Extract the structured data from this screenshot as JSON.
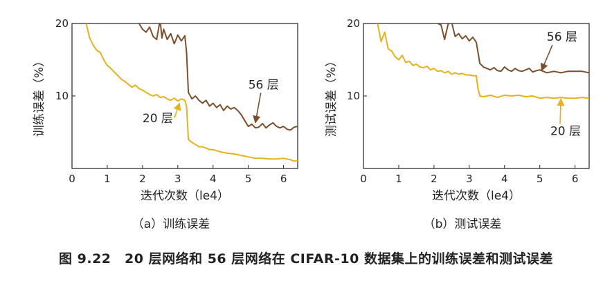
{
  "figure_caption": "图 9.22　20 层网络和 56 层网络在 CIFAR-10 数据集上的训练误差和测试误差",
  "chart_data": [
    {
      "type": "line",
      "subtitle": "（a）训练误差",
      "xlabel": "迭代次数（le4）",
      "ylabel": "训练误差（%）",
      "xlim": [
        0,
        6.4
      ],
      "ylim": [
        0,
        20
      ],
      "xticks": [
        "0",
        "1",
        "2",
        "3",
        "4",
        "5",
        "6"
      ],
      "yticks": [
        "10",
        "20"
      ],
      "series": [
        {
          "name": "56 层",
          "color": "#7a4f2e",
          "x": [
            1.9,
            2.0,
            2.1,
            2.2,
            2.3,
            2.4,
            2.5,
            2.55,
            2.6,
            2.7,
            2.8,
            2.9,
            3.0,
            3.1,
            3.2,
            3.25,
            3.3,
            3.4,
            3.5,
            3.6,
            3.7,
            3.8,
            3.9,
            4.0,
            4.1,
            4.2,
            4.3,
            4.4,
            4.5,
            4.6,
            4.7,
            4.8,
            4.9,
            5.0,
            5.1,
            5.2,
            5.3,
            5.4,
            5.5,
            5.6,
            5.7,
            5.8,
            5.9,
            6.0,
            6.1,
            6.2,
            6.3,
            6.4
          ],
          "values": [
            20.0,
            19.2,
            18.8,
            19.5,
            18.2,
            17.8,
            20.5,
            18.0,
            19.2,
            17.8,
            18.6,
            17.2,
            18.4,
            17.6,
            18.3,
            16.0,
            10.5,
            9.6,
            10.0,
            9.4,
            9.0,
            9.4,
            8.6,
            9.0,
            8.4,
            8.8,
            8.0,
            8.6,
            8.2,
            8.4,
            8.0,
            7.4,
            6.6,
            5.8,
            6.1,
            5.6,
            5.7,
            6.2,
            5.6,
            6.0,
            6.3,
            5.8,
            5.6,
            5.8,
            5.4,
            5.3,
            5.7,
            5.8
          ]
        },
        {
          "name": "20 层",
          "color": "#e6b11a",
          "x": [
            0.4,
            0.5,
            0.6,
            0.7,
            0.8,
            0.9,
            1.0,
            1.1,
            1.2,
            1.3,
            1.4,
            1.5,
            1.6,
            1.7,
            1.8,
            1.9,
            2.0,
            2.1,
            2.2,
            2.3,
            2.4,
            2.5,
            2.6,
            2.7,
            2.8,
            2.9,
            3.0,
            3.1,
            3.2,
            3.25,
            3.3,
            3.4,
            3.5,
            3.6,
            3.7,
            3.8,
            3.9,
            4.0,
            4.2,
            4.4,
            4.6,
            4.8,
            5.0,
            5.2,
            5.4,
            5.6,
            5.8,
            6.0,
            6.2,
            6.3,
            6.4
          ],
          "values": [
            20.0,
            18.0,
            17.0,
            16.3,
            16.0,
            15.0,
            14.2,
            13.8,
            13.3,
            12.8,
            12.3,
            12.0,
            11.6,
            11.2,
            11.5,
            11.0,
            10.8,
            10.5,
            10.2,
            10.0,
            10.2,
            9.8,
            9.9,
            9.6,
            9.4,
            9.7,
            9.3,
            9.6,
            9.4,
            8.5,
            4.0,
            3.6,
            3.3,
            3.0,
            3.0,
            2.8,
            2.6,
            2.6,
            2.3,
            2.1,
            2.0,
            1.8,
            1.6,
            1.4,
            1.4,
            1.3,
            1.3,
            1.4,
            1.2,
            1.0,
            1.1
          ]
        }
      ],
      "annotations": [
        {
          "text": "56 层",
          "x": 5.0,
          "y": 11.0,
          "arrow_to": [
            5.2,
            6.3
          ],
          "color": "#7a4f2e"
        },
        {
          "text": "20 层",
          "x": 2.0,
          "y": 6.4,
          "arrow_to": [
            3.05,
            9.0
          ],
          "color": "#e6b11a"
        }
      ]
    },
    {
      "type": "line",
      "subtitle": "（b）测试误差",
      "xlabel": "迭代次数（le4）",
      "ylabel": "测试误差（%）",
      "xlim": [
        0,
        6.4
      ],
      "ylim": [
        0,
        20
      ],
      "xticks": [
        "0",
        "1",
        "2",
        "3",
        "4",
        "5",
        "6"
      ],
      "yticks": [
        "10",
        "20"
      ],
      "series": [
        {
          "name": "56 层",
          "color": "#7a4f2e",
          "x": [
            2.1,
            2.2,
            2.3,
            2.4,
            2.5,
            2.6,
            2.7,
            2.8,
            2.9,
            3.0,
            3.1,
            3.2,
            3.25,
            3.3,
            3.4,
            3.5,
            3.6,
            3.7,
            3.8,
            3.9,
            4.0,
            4.1,
            4.2,
            4.3,
            4.4,
            4.5,
            4.6,
            4.7,
            4.8,
            4.9,
            5.0,
            5.2,
            5.4,
            5.6,
            5.8,
            6.0,
            6.2,
            6.4
          ],
          "values": [
            20.0,
            19.8,
            17.8,
            19.9,
            20.2,
            18.2,
            18.6,
            17.9,
            18.3,
            17.6,
            18.1,
            17.4,
            16.0,
            14.5,
            14.0,
            13.8,
            13.6,
            13.9,
            13.5,
            13.4,
            14.0,
            13.6,
            13.4,
            13.8,
            13.5,
            13.4,
            13.6,
            13.8,
            13.3,
            13.5,
            13.6,
            13.2,
            13.4,
            13.2,
            13.4,
            13.4,
            13.4,
            13.2
          ]
        },
        {
          "name": "20 层",
          "color": "#e6b11a",
          "x": [
            0.4,
            0.5,
            0.6,
            0.7,
            0.8,
            0.9,
            1.0,
            1.1,
            1.2,
            1.3,
            1.4,
            1.5,
            1.6,
            1.7,
            1.8,
            1.9,
            2.0,
            2.1,
            2.2,
            2.3,
            2.4,
            2.5,
            2.6,
            2.7,
            2.8,
            2.9,
            3.0,
            3.1,
            3.2,
            3.25,
            3.3,
            3.4,
            3.6,
            3.8,
            4.0,
            4.2,
            4.4,
            4.6,
            4.8,
            5.0,
            5.2,
            5.4,
            5.6,
            5.8,
            6.0,
            6.2,
            6.4
          ],
          "values": [
            20.0,
            17.5,
            18.8,
            16.5,
            16.2,
            15.4,
            15.0,
            15.6,
            14.6,
            14.8,
            14.2,
            14.4,
            14.0,
            13.9,
            14.1,
            13.6,
            13.8,
            13.4,
            13.5,
            13.2,
            13.4,
            13.0,
            13.2,
            13.0,
            13.1,
            12.9,
            12.9,
            12.8,
            12.8,
            11.0,
            10.0,
            9.9,
            10.1,
            9.8,
            10.1,
            10.0,
            10.1,
            9.9,
            10.0,
            9.7,
            9.8,
            9.7,
            9.8,
            9.7,
            9.7,
            9.8,
            9.7
          ]
        }
      ],
      "annotations": [
        {
          "text": "56 层",
          "x": 5.2,
          "y": 17.6,
          "arrow_to": [
            5.05,
            13.5
          ],
          "color": "#7a4f2e"
        },
        {
          "text": "20 层",
          "x": 5.3,
          "y": 4.6,
          "arrow_to": [
            5.6,
            9.6
          ],
          "color": "#e6b11a"
        }
      ]
    }
  ]
}
